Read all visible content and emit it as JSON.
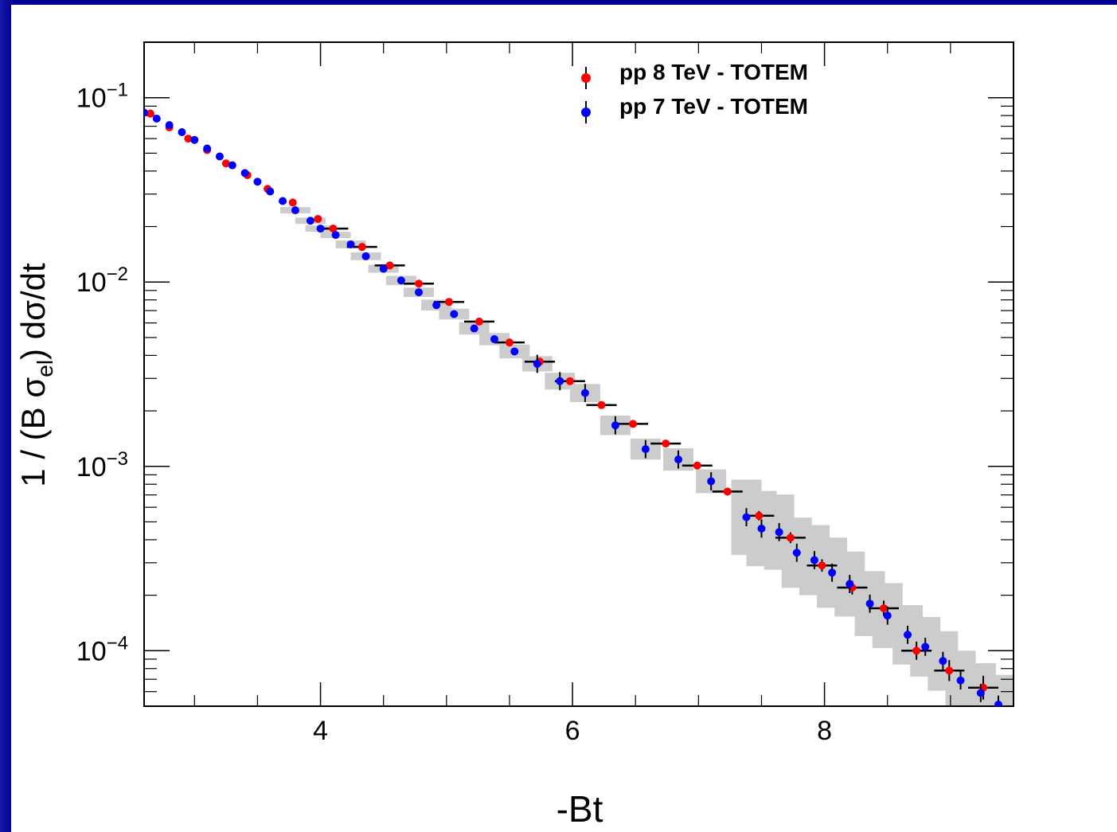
{
  "chart_data": {
    "type": "scatter",
    "title": "",
    "xlabel": "-Bt",
    "ylabel": "1 / (B σ_el)  dσ/dt",
    "xlim": [
      2.6,
      9.5
    ],
    "ylim": [
      5e-05,
      0.2
    ],
    "y_scale": "log",
    "x_ticks": [
      {
        "value": 4,
        "label": "4"
      },
      {
        "value": 6,
        "label": "6"
      },
      {
        "value": 8,
        "label": "8"
      }
    ],
    "y_ticks": [
      {
        "value": 0.1,
        "base": "10",
        "exp": "−1"
      },
      {
        "value": 0.01,
        "base": "10",
        "exp": "−2"
      },
      {
        "value": 0.001,
        "base": "10",
        "exp": "−3"
      },
      {
        "value": 0.0001,
        "base": "10",
        "exp": "−4"
      }
    ],
    "legend_position": "top-right",
    "series": [
      {
        "name": "pp 8 TeV - TOTEM",
        "color": "#ff0000",
        "x": [
          2.65,
          2.8,
          2.95,
          3.1,
          3.25,
          3.42,
          3.58,
          3.78,
          3.98,
          4.1,
          4.33,
          4.55,
          4.78,
          5.02,
          5.26,
          5.5,
          5.74,
          5.98,
          6.23,
          6.48,
          6.74,
          6.99,
          7.23,
          7.48,
          7.73,
          7.98,
          8.22,
          8.47,
          8.73,
          8.99,
          9.26
        ],
        "y": [
          0.082,
          0.069,
          0.06,
          0.052,
          0.044,
          0.038,
          0.032,
          0.027,
          0.022,
          0.0195,
          0.0155,
          0.0123,
          0.0098,
          0.0078,
          0.0061,
          0.0047,
          0.0037,
          0.0029,
          0.00215,
          0.0017,
          0.00133,
          0.00101,
          0.00073,
          0.00054,
          0.00041,
          0.00029,
          0.00022,
          0.00017,
          0.0001,
          7.8e-05,
          6.3e-05
        ],
        "x_err": [
          0,
          0,
          0,
          0,
          0,
          0,
          0,
          0,
          0,
          0.12,
          0.12,
          0.12,
          0.12,
          0.12,
          0.12,
          0.12,
          0.12,
          0.12,
          0.12,
          0.12,
          0.12,
          0.12,
          0.12,
          0.12,
          0.12,
          0.12,
          0.12,
          0.12,
          0.12,
          0.12,
          0.12
        ],
        "y_err_frac": [
          0,
          0,
          0,
          0,
          0,
          0,
          0,
          0,
          0,
          0.03,
          0.03,
          0.03,
          0.03,
          0.03,
          0.03,
          0.03,
          0.03,
          0.03,
          0.04,
          0.04,
          0.04,
          0.04,
          0.05,
          0.06,
          0.07,
          0.08,
          0.09,
          0.1,
          0.12,
          0.14,
          0.16
        ]
      },
      {
        "name": "pp 7 TeV - TOTEM",
        "color": "#0000ff",
        "x": [
          2.6,
          2.7,
          2.8,
          2.9,
          3.0,
          3.1,
          3.2,
          3.3,
          3.4,
          3.5,
          3.6,
          3.7,
          3.8,
          3.92,
          4.0,
          4.12,
          4.24,
          4.36,
          4.5,
          4.64,
          4.78,
          4.92,
          5.06,
          5.22,
          5.38,
          5.54,
          5.72,
          5.9,
          6.1,
          6.34,
          6.58,
          6.84,
          7.1,
          7.38,
          7.5,
          7.64,
          7.78,
          7.92,
          8.06,
          8.2,
          8.36,
          8.5,
          8.66,
          8.8,
          8.94,
          9.08,
          9.24,
          9.38
        ],
        "y": [
          0.083,
          0.077,
          0.071,
          0.065,
          0.059,
          0.053,
          0.048,
          0.043,
          0.039,
          0.035,
          0.031,
          0.0275,
          0.0245,
          0.0215,
          0.0195,
          0.018,
          0.016,
          0.0138,
          0.0118,
          0.0102,
          0.0088,
          0.0075,
          0.0067,
          0.0056,
          0.0049,
          0.0042,
          0.0036,
          0.0029,
          0.0025,
          0.00167,
          0.00124,
          0.00109,
          0.00083,
          0.00053,
          0.00046,
          0.00044,
          0.00034,
          0.00031,
          0.000265,
          0.00023,
          0.00018,
          0.000155,
          0.000122,
          0.000105,
          8.8e-05,
          6.9e-05,
          5.9e-05,
          5.1e-05
        ],
        "box_x_halfwidth": 0.12,
        "sys_band_frac": [
          0,
          0,
          0,
          0,
          0,
          0,
          0,
          0,
          0,
          0,
          0,
          0,
          0.04,
          0.04,
          0.04,
          0.04,
          0.05,
          0.05,
          0.05,
          0.06,
          0.06,
          0.07,
          0.07,
          0.08,
          0.08,
          0.09,
          0.1,
          0.11,
          0.12,
          0.13,
          0.14,
          0.15,
          0.16,
          0.6,
          0.6,
          0.6,
          0.55,
          0.55,
          0.55,
          0.5,
          0.5,
          0.5,
          0.45,
          0.45,
          0.45,
          0.45,
          0.45,
          0.45
        ]
      }
    ]
  }
}
